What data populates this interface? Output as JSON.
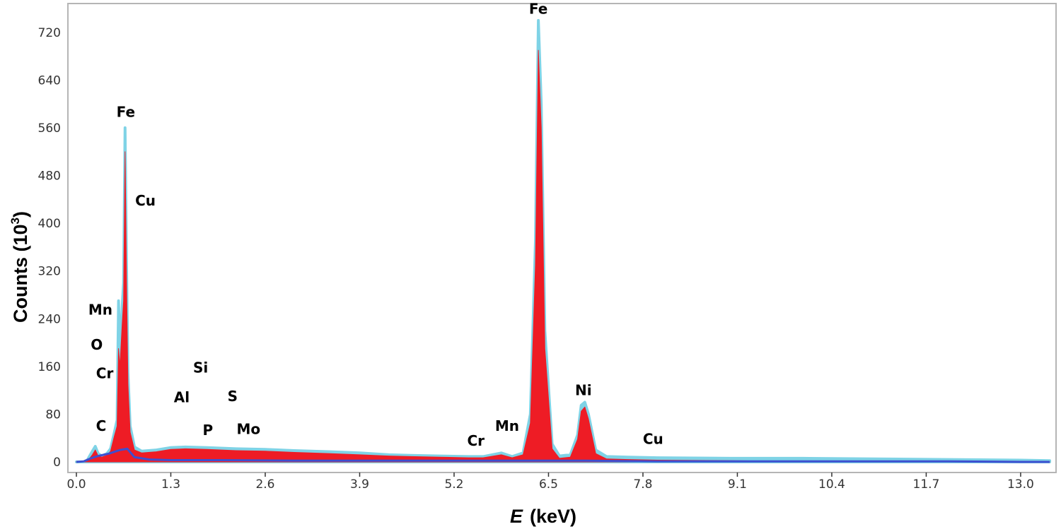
{
  "chart_data": {
    "type": "area",
    "title": "",
    "xlabel": {
      "italic": "E",
      "rest": "(keV)"
    },
    "ylabel": {
      "base": "Counts (10",
      "sup": "3",
      "close": ")"
    },
    "xlim": [
      0,
      13.4
    ],
    "ylim": [
      0,
      760
    ],
    "x_ticks": [
      "0.0",
      "1.3",
      "2.6",
      "3.9",
      "5.2",
      "6.5",
      "7.8",
      "9.1",
      "10.4",
      "11.7",
      "13.0"
    ],
    "y_ticks": [
      "0",
      "80",
      "160",
      "240",
      "320",
      "400",
      "480",
      "560",
      "640",
      "720"
    ],
    "grid": false,
    "legend": "none",
    "series": [
      {
        "color": "#7fd3e6",
        "role": "envelope",
        "x": [
          0.0,
          0.1,
          0.15,
          0.22,
          0.26,
          0.3,
          0.35,
          0.42,
          0.47,
          0.52,
          0.56,
          0.58,
          0.6,
          0.63,
          0.65,
          0.67,
          0.69,
          0.71,
          0.74,
          0.8,
          0.9,
          1.1,
          1.3,
          1.5,
          1.8,
          2.2,
          2.6,
          3.0,
          3.5,
          3.9,
          4.3,
          4.6,
          5.0,
          5.4,
          5.6,
          5.85,
          6.0,
          6.15,
          6.25,
          6.32,
          6.36,
          6.4,
          6.45,
          6.55,
          6.65,
          6.8,
          6.9,
          6.95,
          7.0,
          7.05,
          7.15,
          7.3,
          7.6,
          8.0,
          9.0,
          10.0,
          11.0,
          12.0,
          13.0,
          13.4
        ],
        "values": [
          0,
          0,
          3,
          18,
          26,
          14,
          10,
          14,
          22,
          48,
          70,
          270,
          180,
          260,
          300,
          560,
          330,
          150,
          60,
          25,
          18,
          20,
          24,
          25,
          24,
          22,
          21,
          19,
          17,
          15,
          12,
          11,
          10,
          9,
          9,
          15,
          9,
          15,
          80,
          370,
          740,
          600,
          220,
          30,
          10,
          12,
          45,
          95,
          100,
          80,
          20,
          9,
          8,
          7,
          6,
          6,
          5,
          4,
          3,
          2
        ]
      },
      {
        "color": "#ee1c25",
        "role": "fill",
        "x": [
          0.0,
          0.1,
          0.15,
          0.22,
          0.26,
          0.3,
          0.35,
          0.42,
          0.47,
          0.52,
          0.56,
          0.58,
          0.6,
          0.63,
          0.65,
          0.67,
          0.69,
          0.71,
          0.74,
          0.8,
          0.9,
          1.1,
          1.3,
          1.5,
          1.8,
          2.2,
          2.6,
          3.0,
          3.5,
          3.9,
          4.3,
          4.6,
          5.0,
          5.4,
          5.6,
          5.85,
          6.0,
          6.15,
          6.25,
          6.32,
          6.36,
          6.4,
          6.45,
          6.55,
          6.65,
          6.8,
          6.9,
          6.95,
          7.0,
          7.05,
          7.15,
          7.3,
          7.6,
          8.0,
          9.0,
          10.0,
          11.0,
          12.0,
          13.0,
          13.4
        ],
        "values": [
          0,
          0,
          1,
          12,
          20,
          10,
          8,
          11,
          18,
          42,
          60,
          190,
          160,
          230,
          270,
          520,
          300,
          130,
          50,
          20,
          15,
          17,
          21,
          22,
          21,
          19,
          18,
          16,
          14,
          12,
          10,
          9,
          8,
          7,
          7,
          12,
          7,
          12,
          65,
          330,
          690,
          560,
          190,
          22,
          6,
          8,
          38,
          85,
          92,
          72,
          14,
          5,
          4,
          3,
          2,
          1,
          1,
          1,
          0,
          0
        ]
      },
      {
        "color": "#3d4fd0",
        "role": "background",
        "x": [
          0.0,
          0.1,
          0.2,
          0.3,
          0.45,
          0.6,
          0.7,
          0.8,
          1.0,
          1.3,
          1.6,
          2.0,
          3.0,
          4.0,
          5.0,
          6.0,
          7.0,
          8.0,
          9.0,
          10.0,
          11.0,
          12.0,
          13.0,
          13.4
        ],
        "values": [
          0,
          1,
          6,
          10,
          14,
          20,
          22,
          8,
          4,
          3,
          3,
          3,
          2,
          2,
          2,
          2,
          2,
          1,
          1,
          1,
          1,
          1,
          0,
          0
        ]
      }
    ],
    "annotations": [
      {
        "text": "Fe",
        "x": 0.68,
        "y": 578
      },
      {
        "text": "Cu",
        "x": 0.95,
        "y": 430
      },
      {
        "text": "Mn",
        "x": 0.33,
        "y": 247
      },
      {
        "text": "O",
        "x": 0.28,
        "y": 188
      },
      {
        "text": "Cr",
        "x": 0.39,
        "y": 140
      },
      {
        "text": "Si",
        "x": 1.71,
        "y": 150
      },
      {
        "text": "Al",
        "x": 1.45,
        "y": 100
      },
      {
        "text": "S",
        "x": 2.15,
        "y": 102
      },
      {
        "text": "C",
        "x": 0.34,
        "y": 52
      },
      {
        "text": "P",
        "x": 1.81,
        "y": 45
      },
      {
        "text": "Mo",
        "x": 2.37,
        "y": 47
      },
      {
        "text": "Fe",
        "x": 6.36,
        "y": 751
      },
      {
        "text": "Cr",
        "x": 5.5,
        "y": 27
      },
      {
        "text": "Mn",
        "x": 5.93,
        "y": 52
      },
      {
        "text": "Ni",
        "x": 6.98,
        "y": 112
      },
      {
        "text": "Cu",
        "x": 7.94,
        "y": 30
      }
    ]
  }
}
